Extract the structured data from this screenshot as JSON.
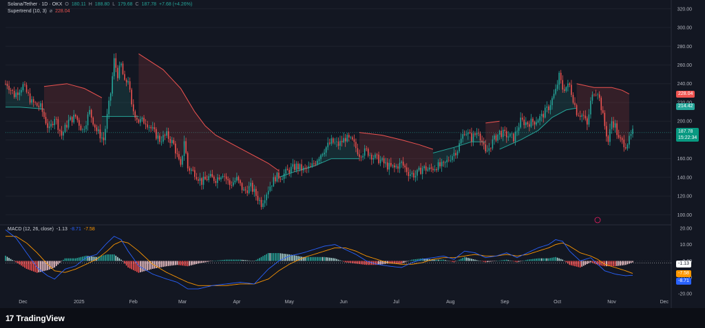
{
  "legend_main": {
    "symbol": "Solana/Tether · 1D · OKX",
    "o_label": "O",
    "o": "180.11",
    "h_label": "H",
    "h": "188.80",
    "l_label": "L",
    "l": "179.68",
    "c_label": "C",
    "c": "187.78",
    "change": "+7.68 (+4.26%)"
  },
  "legend_st": {
    "name": "Supertrend (10, 3)",
    "value": "228.04"
  },
  "legend_macd": {
    "name": "MACD (12, 26, close)",
    "v1": "-1.13",
    "v2": "-8.71",
    "v3": "-7.58"
  },
  "badges": {
    "st_upper": "228.04",
    "st_lower": "214.42",
    "price": "187.78",
    "countdown": "15:22:34",
    "hist": "-1.13",
    "signal": "-7.58",
    "macd": "-8.71"
  },
  "brand": "TradingView",
  "colors": {
    "bg": "#131722",
    "up": "#26a69a",
    "down": "#ef5350",
    "macd": "#2962ff",
    "signal": "#ff9800",
    "st_up": "#26a69a",
    "st_down": "#ef5350"
  },
  "chart_data": [
    {
      "type": "candlestick",
      "title": "Solana/Tether · 1D · OKX",
      "y_ticks": [
        100,
        120,
        140,
        160,
        180,
        200,
        220,
        240,
        260,
        280,
        300,
        320
      ],
      "ylim": [
        90,
        325
      ],
      "x_ticks": [
        "Dec",
        "2025",
        "Feb",
        "Mar",
        "Apr",
        "May",
        "Jun",
        "Jul",
        "Aug",
        "Sep",
        "Oct",
        "Nov",
        "Dec"
      ],
      "xlim_days": [
        0,
        380
      ],
      "grid": true,
      "keypoints": [
        [
          1,
          240
        ],
        [
          5,
          228
        ],
        [
          10,
          238
        ],
        [
          15,
          220
        ],
        [
          20,
          215
        ],
        [
          25,
          190
        ],
        [
          28,
          205
        ],
        [
          32,
          185
        ],
        [
          36,
          200
        ],
        [
          40,
          205
        ],
        [
          44,
          190
        ],
        [
          48,
          210
        ],
        [
          52,
          190
        ],
        [
          56,
          180
        ],
        [
          60,
          230
        ],
        [
          62,
          265
        ],
        [
          64,
          250
        ],
        [
          66,
          260
        ],
        [
          68,
          240
        ],
        [
          70,
          245
        ],
        [
          72,
          215
        ],
        [
          76,
          200
        ],
        [
          80,
          200
        ],
        [
          84,
          190
        ],
        [
          88,
          180
        ],
        [
          92,
          185
        ],
        [
          96,
          175
        ],
        [
          100,
          150
        ],
        [
          102,
          180
        ],
        [
          104,
          150
        ],
        [
          108,
          145
        ],
        [
          112,
          135
        ],
        [
          116,
          140
        ],
        [
          120,
          138
        ],
        [
          124,
          145
        ],
        [
          128,
          132
        ],
        [
          132,
          138
        ],
        [
          136,
          125
        ],
        [
          140,
          130
        ],
        [
          144,
          118
        ],
        [
          146,
          112
        ],
        [
          150,
          128
        ],
        [
          154,
          140
        ],
        [
          158,
          142
        ],
        [
          162,
          148
        ],
        [
          166,
          152
        ],
        [
          170,
          148
        ],
        [
          174,
          150
        ],
        [
          178,
          160
        ],
        [
          182,
          170
        ],
        [
          186,
          178
        ],
        [
          190,
          175
        ],
        [
          194,
          182
        ],
        [
          198,
          178
        ],
        [
          202,
          165
        ],
        [
          206,
          168
        ],
        [
          210,
          162
        ],
        [
          214,
          158
        ],
        [
          218,
          152
        ],
        [
          222,
          150
        ],
        [
          226,
          155
        ],
        [
          230,
          145
        ],
        [
          234,
          142
        ],
        [
          238,
          150
        ],
        [
          242,
          148
        ],
        [
          246,
          152
        ],
        [
          250,
          152
        ],
        [
          254,
          162
        ],
        [
          258,
          170
        ],
        [
          262,
          190
        ],
        [
          266,
          182
        ],
        [
          270,
          190
        ],
        [
          274,
          165
        ],
        [
          278,
          178
        ],
        [
          282,
          188
        ],
        [
          286,
          185
        ],
        [
          290,
          182
        ],
        [
          294,
          200
        ],
        [
          298,
          198
        ],
        [
          302,
          200
        ],
        [
          306,
          205
        ],
        [
          310,
          215
        ],
        [
          314,
          232
        ],
        [
          316,
          248
        ],
        [
          318,
          235
        ],
        [
          322,
          238
        ],
        [
          326,
          210
        ],
        [
          330,
          205
        ],
        [
          332,
          195
        ],
        [
          334,
          220
        ],
        [
          336,
          232
        ],
        [
          338,
          232
        ],
        [
          340,
          215
        ],
        [
          342,
          195
        ],
        [
          344,
          178
        ],
        [
          346,
          200
        ],
        [
          348,
          195
        ],
        [
          350,
          180
        ],
        [
          352,
          178
        ],
        [
          354,
          175
        ],
        [
          356,
          180
        ],
        [
          358,
          188
        ]
      ],
      "supertrend": {
        "name": "Supertrend (10, 3)",
        "segments": [
          {
            "dir": "up",
            "pts": [
              [
                0,
                215
              ],
              [
                8,
                215
              ],
              [
                15,
                214
              ],
              [
                22,
                213
              ]
            ]
          },
          {
            "dir": "down",
            "pts": [
              [
                22,
                237
              ],
              [
                35,
                240
              ],
              [
                45,
                235
              ],
              [
                55,
                225
              ]
            ]
          },
          {
            "dir": "up",
            "pts": [
              [
                55,
                205
              ],
              [
                70,
                205
              ],
              [
                76,
                205
              ]
            ]
          },
          {
            "dir": "down",
            "pts": [
              [
                76,
                272
              ],
              [
                90,
                255
              ],
              [
                100,
                235
              ],
              [
                108,
                210
              ],
              [
                114,
                195
              ],
              [
                120,
                185
              ],
              [
                130,
                175
              ],
              [
                140,
                165
              ],
              [
                150,
                155
              ],
              [
                156,
                147
              ]
            ]
          },
          {
            "dir": "up",
            "pts": [
              [
                156,
                140
              ],
              [
                165,
                146
              ],
              [
                176,
                152
              ],
              [
                186,
                160
              ],
              [
                196,
                160
              ],
              [
                202,
                160
              ]
            ]
          },
          {
            "dir": "down",
            "pts": [
              [
                202,
                188
              ],
              [
                215,
                185
              ],
              [
                226,
                180
              ],
              [
                236,
                175
              ],
              [
                244,
                170
              ]
            ]
          },
          {
            "dir": "up",
            "pts": [
              [
                244,
                166
              ],
              [
                256,
                172
              ],
              [
                266,
                178
              ],
              [
                274,
                178
              ]
            ]
          },
          {
            "dir": "down",
            "pts": [
              [
                274,
                198
              ],
              [
                282,
                200
              ]
            ]
          },
          {
            "dir": "up",
            "pts": [
              [
                282,
                170
              ],
              [
                294,
                180
              ],
              [
                304,
                190
              ],
              [
                312,
                204
              ],
              [
                320,
                212
              ],
              [
                326,
                214
              ]
            ]
          },
          {
            "dir": "down",
            "pts": [
              [
                326,
                240
              ],
              [
                336,
                236
              ],
              [
                346,
                236
              ],
              [
                352,
                233
              ],
              [
                356,
                229
              ]
            ]
          }
        ]
      }
    },
    {
      "type": "macd",
      "title": "MACD (12, 26, close)",
      "y_ticks": [
        -20,
        -10,
        0,
        10,
        20
      ],
      "ylim": [
        -22,
        22
      ],
      "series": [
        {
          "name": "MACD",
          "color": "#2962ff"
        },
        {
          "name": "Signal",
          "color": "#ff9800"
        },
        {
          "name": "Histogram"
        }
      ],
      "keypoints_macd": [
        [
          0,
          19
        ],
        [
          6,
          14
        ],
        [
          12,
          5
        ],
        [
          18,
          -4
        ],
        [
          24,
          -9
        ],
        [
          28,
          -11
        ],
        [
          34,
          -5
        ],
        [
          40,
          -3
        ],
        [
          46,
          2
        ],
        [
          52,
          4
        ],
        [
          58,
          11
        ],
        [
          62,
          15
        ],
        [
          66,
          13
        ],
        [
          70,
          6
        ],
        [
          76,
          -3
        ],
        [
          84,
          -8
        ],
        [
          92,
          -11
        ],
        [
          98,
          -13
        ],
        [
          104,
          -17
        ],
        [
          110,
          -17
        ],
        [
          118,
          -15
        ],
        [
          126,
          -14
        ],
        [
          134,
          -13
        ],
        [
          142,
          -14
        ],
        [
          150,
          -5
        ],
        [
          156,
          0
        ],
        [
          162,
          3
        ],
        [
          170,
          5
        ],
        [
          176,
          7
        ],
        [
          182,
          9
        ],
        [
          188,
          10
        ],
        [
          194,
          7
        ],
        [
          200,
          4
        ],
        [
          206,
          0
        ],
        [
          212,
          -2
        ],
        [
          218,
          -3
        ],
        [
          226,
          -4
        ],
        [
          232,
          -1
        ],
        [
          238,
          1
        ],
        [
          244,
          2
        ],
        [
          250,
          3
        ],
        [
          256,
          1
        ],
        [
          262,
          6
        ],
        [
          268,
          5
        ],
        [
          274,
          2
        ],
        [
          280,
          3
        ],
        [
          286,
          5
        ],
        [
          292,
          2
        ],
        [
          298,
          5
        ],
        [
          304,
          8
        ],
        [
          310,
          10
        ],
        [
          314,
          13
        ],
        [
          318,
          12
        ],
        [
          322,
          6
        ],
        [
          328,
          0
        ],
        [
          334,
          2
        ],
        [
          338,
          -2
        ],
        [
          342,
          -6
        ],
        [
          348,
          -8
        ],
        [
          354,
          -9
        ],
        [
          358,
          -8.7
        ]
      ],
      "keypoints_signal": [
        [
          0,
          15
        ],
        [
          6,
          15
        ],
        [
          12,
          11
        ],
        [
          18,
          5
        ],
        [
          24,
          -2
        ],
        [
          28,
          -6
        ],
        [
          34,
          -7
        ],
        [
          40,
          -5
        ],
        [
          46,
          -2
        ],
        [
          52,
          1
        ],
        [
          58,
          6
        ],
        [
          62,
          10
        ],
        [
          66,
          12
        ],
        [
          70,
          11
        ],
        [
          76,
          6
        ],
        [
          84,
          -2
        ],
        [
          92,
          -7
        ],
        [
          98,
          -10
        ],
        [
          104,
          -13
        ],
        [
          110,
          -15
        ],
        [
          118,
          -15
        ],
        [
          126,
          -15
        ],
        [
          134,
          -14
        ],
        [
          142,
          -14
        ],
        [
          150,
          -11
        ],
        [
          156,
          -6
        ],
        [
          162,
          -2
        ],
        [
          170,
          2
        ],
        [
          176,
          4
        ],
        [
          182,
          6
        ],
        [
          188,
          8
        ],
        [
          194,
          8
        ],
        [
          200,
          6
        ],
        [
          206,
          3
        ],
        [
          212,
          1
        ],
        [
          218,
          -1
        ],
        [
          226,
          -2
        ],
        [
          232,
          -2
        ],
        [
          238,
          -1
        ],
        [
          244,
          1
        ],
        [
          250,
          2
        ],
        [
          256,
          2
        ],
        [
          262,
          3
        ],
        [
          268,
          4
        ],
        [
          274,
          3
        ],
        [
          280,
          3
        ],
        [
          286,
          4
        ],
        [
          292,
          3
        ],
        [
          298,
          4
        ],
        [
          304,
          6
        ],
        [
          310,
          8
        ],
        [
          314,
          10
        ],
        [
          318,
          11
        ],
        [
          322,
          9
        ],
        [
          328,
          5
        ],
        [
          334,
          3
        ],
        [
          338,
          1
        ],
        [
          342,
          -2
        ],
        [
          348,
          -4
        ],
        [
          354,
          -6
        ],
        [
          358,
          -7.6
        ]
      ]
    }
  ]
}
